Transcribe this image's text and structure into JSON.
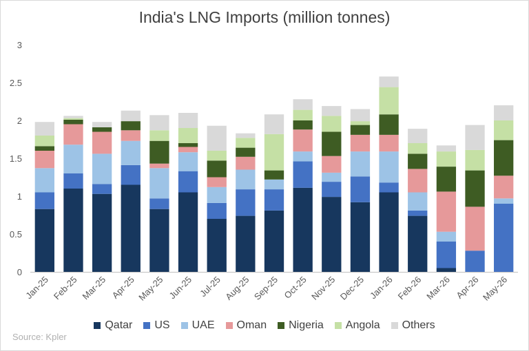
{
  "chart_data": {
    "type": "bar",
    "stacked": true,
    "title": "India's LNG Imports (million tonnes)",
    "source": "Source: Kpler",
    "ylim": [
      0,
      3
    ],
    "yticks": [
      "0",
      "0.5",
      "1",
      "1.5",
      "2",
      "2.5",
      "3"
    ],
    "grid": false,
    "legend_position": "bottom",
    "categories": [
      "Jan-25",
      "Feb-25",
      "Mar-25",
      "Apr-25",
      "May-25",
      "Jun-25",
      "Jul-25",
      "Aug-25",
      "Sep-25",
      "Oct-25",
      "Nov-25",
      "Dec-25",
      "Jan-26",
      "Feb-26",
      "Mar-26",
      "Apr-26",
      "May-26"
    ],
    "series": [
      {
        "name": "Qatar",
        "color": "#17375e",
        "values": [
          0.83,
          1.1,
          1.03,
          1.15,
          0.83,
          1.05,
          0.7,
          0.74,
          0.81,
          1.11,
          0.99,
          0.92,
          1.05,
          0.74,
          0.05,
          0.0,
          0.0
        ]
      },
      {
        "name": "US",
        "color": "#4472c4",
        "values": [
          0.22,
          0.2,
          0.13,
          0.26,
          0.14,
          0.28,
          0.21,
          0.35,
          0.28,
          0.35,
          0.2,
          0.34,
          0.13,
          0.07,
          0.35,
          0.28,
          0.9
        ]
      },
      {
        "name": "UAE",
        "color": "#9dc3e6",
        "values": [
          0.32,
          0.38,
          0.4,
          0.32,
          0.4,
          0.25,
          0.21,
          0.26,
          0.13,
          0.13,
          0.12,
          0.33,
          0.41,
          0.24,
          0.13,
          0.0,
          0.07
        ]
      },
      {
        "name": "Oman",
        "color": "#e6999a",
        "values": [
          0.23,
          0.27,
          0.29,
          0.14,
          0.06,
          0.07,
          0.13,
          0.17,
          0.0,
          0.29,
          0.22,
          0.22,
          0.22,
          0.31,
          0.53,
          0.58,
          0.3
        ]
      },
      {
        "name": "Nigeria",
        "color": "#3e5c23",
        "values": [
          0.06,
          0.06,
          0.06,
          0.12,
          0.3,
          0.05,
          0.22,
          0.12,
          0.12,
          0.12,
          0.32,
          0.13,
          0.27,
          0.2,
          0.33,
          0.48,
          0.47
        ]
      },
      {
        "name": "Angola",
        "color": "#c5e0a5",
        "values": [
          0.14,
          0.02,
          0.0,
          0.0,
          0.14,
          0.2,
          0.13,
          0.13,
          0.48,
          0.14,
          0.21,
          0.05,
          0.36,
          0.14,
          0.2,
          0.27,
          0.26
        ]
      },
      {
        "name": "Others",
        "color": "#d9d9d9",
        "values": [
          0.18,
          0.03,
          0.07,
          0.14,
          0.2,
          0.2,
          0.33,
          0.06,
          0.26,
          0.14,
          0.13,
          0.16,
          0.14,
          0.19,
          0.08,
          0.33,
          0.2
        ]
      }
    ]
  }
}
